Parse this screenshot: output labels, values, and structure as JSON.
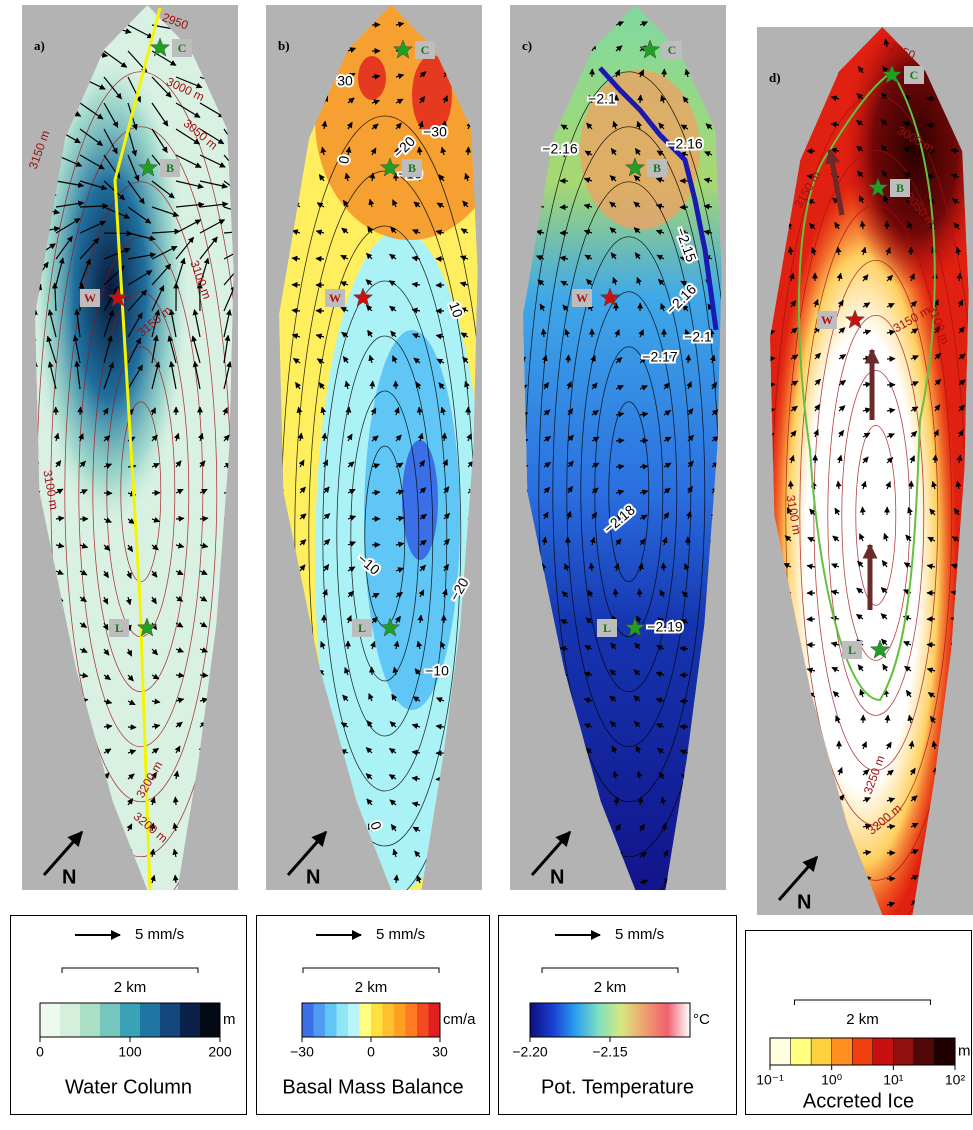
{
  "panels": [
    {
      "label": "a)",
      "north": "N",
      "stations": [
        "C",
        "B",
        "W",
        "L"
      ],
      "contour_labels": [
        "2950",
        "3000 m",
        "3150 m",
        "3050 m",
        "3150 m",
        "3100 m",
        "3100 m",
        "3200 m",
        "3200 m"
      ],
      "legend": {
        "arrow_label": "5 mm/s",
        "scale_label": "2 km",
        "unit": "m",
        "title": "Water Column",
        "range": [
          0,
          200
        ],
        "ticks": [
          0,
          100,
          200
        ],
        "colors": [
          "#eefaf0",
          "#d4f0dc",
          "#abe0c6",
          "#74c6bf",
          "#3aa2b6",
          "#1f76a3",
          "#13467a",
          "#0b2149",
          "#030915"
        ]
      }
    },
    {
      "label": "b)",
      "north": "N",
      "stations": [
        "C",
        "B",
        "W",
        "L"
      ],
      "contour_labels": [
        "30",
        "−30",
        "−20",
        "0",
        "−10",
        "10",
        "−10",
        "−20",
        "−10",
        "0"
      ],
      "legend": {
        "arrow_label": "5 mm/s",
        "scale_label": "2 km",
        "unit": "cm/a",
        "title": "Basal Mass Balance",
        "range": [
          -30,
          30
        ],
        "ticks": [
          {
            "value": -30,
            "label": "−30"
          },
          0,
          30
        ],
        "colors": [
          "#3b6fe8",
          "#4f9cf2",
          "#5fc6f5",
          "#8fe6f7",
          "#b9f5f8",
          "#ffff80",
          "#ffe040",
          "#ffc030",
          "#ffa020",
          "#ff7a20",
          "#f44a20",
          "#e02020"
        ]
      }
    },
    {
      "label": "c)",
      "north": "N",
      "stations": [
        "C",
        "B",
        "W",
        "L"
      ],
      "contour_labels": [
        "−2.1",
        "−2.16",
        "−2.16",
        "−2.15",
        "−2.16",
        "−2.1",
        "−2.17",
        "−2.18",
        "−2.19"
      ],
      "legend": {
        "arrow_label": "5 mm/s",
        "scale_label": "2 km",
        "unit": "°C",
        "title": "Pot. Temperature",
        "range": [
          -2.2,
          -2.1
        ],
        "ticks": [
          {
            "value": -2.2,
            "label": "−2.20"
          },
          {
            "value": -2.15,
            "label": "−2.15"
          }
        ],
        "continuous": true,
        "colors": [
          "#0d0d80",
          "#1a3fd0",
          "#2aa0f0",
          "#7fe0c0",
          "#d8e880",
          "#f0a070",
          "#f06070",
          "#ffffff"
        ]
      }
    },
    {
      "label": "d)",
      "north": "N",
      "stations": [
        "C",
        "B",
        "W",
        "L"
      ],
      "contour_labels": [
        "2950",
        "3000 m",
        "3150 m",
        "3050 m",
        "3150 m",
        "3100 m",
        "3100 m",
        "3250 m",
        "3200 m"
      ],
      "legend": {
        "scale_label": "2 km",
        "unit": "m",
        "title": "Accreted Ice",
        "range": [
          0.1,
          100
        ],
        "log": true,
        "ticks": [
          {
            "value": 0.1,
            "label": "10⁻¹"
          },
          {
            "value": 1,
            "label": "10⁰"
          },
          {
            "value": 10,
            "label": "10¹"
          },
          {
            "value": 100,
            "label": "10²"
          }
        ],
        "colors": [
          "#ffffe0",
          "#ffff80",
          "#ffd040",
          "#ff9020",
          "#f04010",
          "#c81010",
          "#901010",
          "#500808",
          "#200000"
        ]
      }
    }
  ]
}
